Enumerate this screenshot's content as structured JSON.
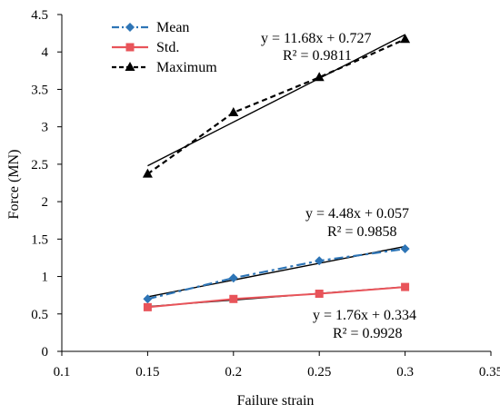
{
  "chart_data": {
    "type": "line",
    "xlabel": "Failure strain",
    "ylabel": "Force (MN)",
    "xlim": [
      0.1,
      0.35
    ],
    "ylim": [
      0,
      4.5
    ],
    "x_ticks": [
      "0.1",
      "0.15",
      "0.2",
      "0.25",
      "0.3",
      "0.35"
    ],
    "y_ticks": [
      "0",
      "0.5",
      "1",
      "1.5",
      "2",
      "2.5",
      "3",
      "3.5",
      "4",
      "4.5"
    ],
    "grid": false,
    "legend_position": "top-left",
    "series": [
      {
        "name": "Mean",
        "x": [
          0.15,
          0.2,
          0.25,
          0.3
        ],
        "y": [
          0.7,
          0.98,
          1.21,
          1.37
        ],
        "color": "#2e75b6",
        "marker": "diamond",
        "line_style": "dash-dot"
      },
      {
        "name": "Std.",
        "x": [
          0.15,
          0.2,
          0.25,
          0.3
        ],
        "y": [
          0.59,
          0.7,
          0.77,
          0.86
        ],
        "color": "#e8545a",
        "marker": "square",
        "line_style": "solid"
      },
      {
        "name": "Maximum",
        "x": [
          0.15,
          0.2,
          0.25,
          0.3
        ],
        "y": [
          2.37,
          3.19,
          3.66,
          4.17
        ],
        "color": "#000000",
        "marker": "triangle",
        "line_style": "dashed"
      }
    ],
    "trendlines": [
      {
        "series": "Maximum",
        "slope": 11.68,
        "intercept": 0.727,
        "x_range": [
          0.15,
          0.3
        ],
        "equation": "y = 11.68x + 0.727",
        "r2": "R² = 0.9811"
      },
      {
        "series": "Mean",
        "slope": 4.48,
        "intercept": 0.057,
        "x_range": [
          0.15,
          0.3
        ],
        "equation": "y = 4.48x + 0.057",
        "r2": "R² = 0.9858"
      },
      {
        "series": "Std.",
        "slope": 1.76,
        "intercept": 0.334,
        "x_range": [
          0.15,
          0.3
        ],
        "equation": "y = 1.76x + 0.334",
        "r2": "R² = 0.9928"
      }
    ]
  }
}
